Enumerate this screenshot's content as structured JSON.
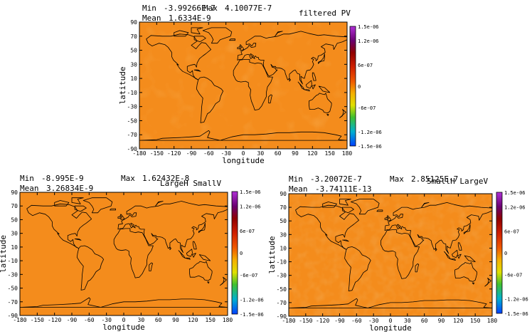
{
  "chart_data": [
    {
      "type": "heatmap",
      "stats": {
        "min_label": "Min",
        "min": "-3.99266E-7",
        "max_label": "Max",
        "max": "4.10077E-7",
        "mean_label": "Mean",
        "mean": "1.6334E-9"
      },
      "title": "filtered PV",
      "xlabel": "longitude",
      "ylabel": "latitude",
      "xticks": [
        "-180",
        "-150",
        "-120",
        "-90",
        "-60",
        "-30",
        "0",
        "30",
        "60",
        "90",
        "120",
        "150",
        "180"
      ],
      "yticks": [
        "90",
        "70",
        "50",
        "30",
        "10",
        "-10",
        "-30",
        "-50",
        "-70",
        "-90"
      ],
      "xlim": [
        -180,
        180
      ],
      "ylim": [
        -90,
        90
      ],
      "colorbar_ticks": [
        "1.5e-06",
        "1.2e-06",
        "6e-07",
        "0",
        "-6e-07",
        "-1.2e-06",
        "-1.5e-06"
      ]
    },
    {
      "type": "heatmap",
      "stats": {
        "min_label": "Min",
        "min": "-8.995E-9",
        "max_label": "Max",
        "max": "1.62432E-8",
        "mean_label": "Mean",
        "mean": "3.26834E-9"
      },
      "title": "LargeH SmallV",
      "xlabel": "longitude",
      "ylabel": "latitude",
      "xticks": [
        "-180",
        "-150",
        "-120",
        "-90",
        "-60",
        "-30",
        "0",
        "30",
        "60",
        "90",
        "120",
        "150",
        "180"
      ],
      "yticks": [
        "90",
        "70",
        "50",
        "30",
        "10",
        "-10",
        "-30",
        "-50",
        "-70",
        "-90"
      ],
      "xlim": [
        -180,
        180
      ],
      "ylim": [
        -90,
        90
      ],
      "colorbar_ticks": [
        "1.5e-06",
        "1.2e-06",
        "6e-07",
        "0",
        "-6e-07",
        "-1.2e-06",
        "-1.5e-06"
      ]
    },
    {
      "type": "heatmap",
      "stats": {
        "min_label": "Min",
        "min": "-3.20072E-7",
        "max_label": "Max",
        "max": "2.85125E-7",
        "mean_label": "Mean",
        "mean": "-3.74111E-13"
      },
      "title": "SmallH LargeV",
      "xlabel": "longitude",
      "ylabel": "latitude",
      "xticks": [
        "-180",
        "-150",
        "-120",
        "-90",
        "-60",
        "-30",
        "0",
        "30",
        "60",
        "90",
        "120",
        "150",
        "180"
      ],
      "yticks": [
        "90",
        "70",
        "50",
        "30",
        "10",
        "-10",
        "-30",
        "-50",
        "-70",
        "-90"
      ],
      "xlim": [
        -180,
        180
      ],
      "ylim": [
        -90,
        90
      ],
      "colorbar_ticks": [
        "1.5e-06",
        "1.2e-06",
        "6e-07",
        "0",
        "-6e-07",
        "-1.2e-06",
        "-1.5e-06"
      ]
    }
  ],
  "colors": {
    "field": "#f48c1c",
    "field_light": "#f7a43a",
    "field_dark": "#e8621a",
    "coast": "#000000",
    "colorbar": [
      "#a020c8",
      "#700080",
      "#8b0000",
      "#c81e00",
      "#f04000",
      "#f59a00",
      "#d9d900",
      "#40c020",
      "#00a0c8",
      "#0050ff"
    ]
  }
}
